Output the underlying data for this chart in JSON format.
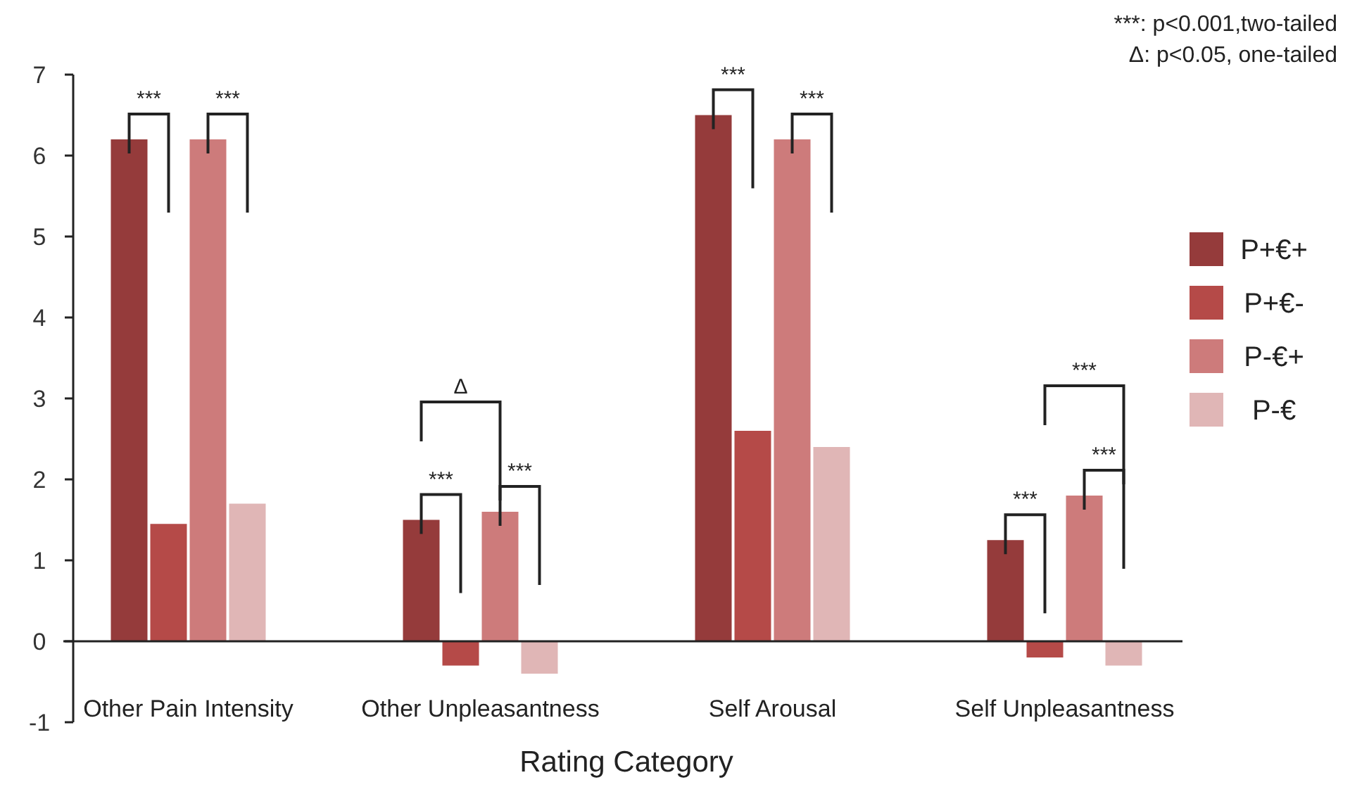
{
  "chart_data": {
    "type": "bar",
    "xlabel": "Rating Category",
    "categories": [
      "Other Pain Intensity",
      "Other Unpleasantness",
      "Self Arousal",
      "Self Unpleasantness"
    ],
    "series": [
      {
        "name": "P+€+",
        "color": "#953b3b",
        "values": [
          6.2,
          1.5,
          6.5,
          1.25
        ]
      },
      {
        "name": "P+€-",
        "color": "#b54a48",
        "values": [
          1.45,
          -0.3,
          2.6,
          -0.2
        ]
      },
      {
        "name": "P-€+",
        "color": "#cd7b7b",
        "values": [
          6.2,
          1.6,
          6.2,
          1.8
        ]
      },
      {
        "name": "P-€",
        "color": "#e0b6b6",
        "values": [
          1.7,
          -0.4,
          2.4,
          -0.3
        ]
      }
    ],
    "ylim": [
      -1,
      7
    ],
    "yticks": [
      -1,
      0,
      1,
      2,
      3,
      4,
      5,
      6,
      7
    ],
    "grid": false,
    "legend": "right",
    "annotations": [
      "***:  p<0.001,two-tailed",
      "Δ: p<0.05, one-tailed",
      "***",
      "***",
      "Δ",
      "***",
      "***",
      "***",
      "***",
      "***",
      "***",
      "***"
    ]
  }
}
